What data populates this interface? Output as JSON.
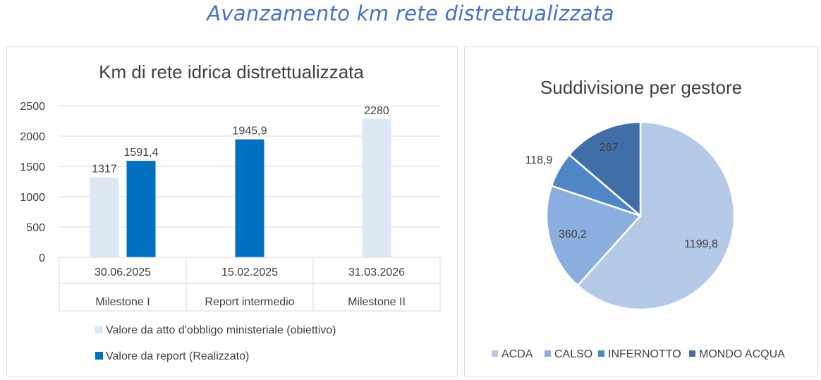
{
  "page": {
    "title": "Avanzamento km rete distrettualizzata"
  },
  "colors": {
    "title_blue": "#4472c4",
    "obiettivo": "#dde8f5",
    "realizzato": "#0070c0",
    "pie": [
      "#b4c9e6",
      "#8aaedd",
      "#4f86c6",
      "#3f6fa6"
    ]
  },
  "chart_data": [
    {
      "type": "bar",
      "title": "Km di rete idrica distrettualizzata",
      "categories": [
        {
          "date": "30.06.2025",
          "label": "Milestone I"
        },
        {
          "date": "15.02.2025",
          "label": "Report intermedio"
        },
        {
          "date": "31.03.2026",
          "label": "Milestone II"
        }
      ],
      "series": [
        {
          "name": "Valore da atto d'obbligo ministeriale (obiettivo)",
          "values": [
            1317,
            null,
            2280
          ],
          "labels": [
            "1317",
            "",
            "2280"
          ]
        },
        {
          "name": "Valore da report (Realizzato)",
          "values": [
            1591.4,
            1945.9,
            null
          ],
          "labels": [
            "1591,4",
            "1945,9",
            ""
          ]
        }
      ],
      "ylim": [
        0,
        2500
      ],
      "yticks": [
        "0",
        "500",
        "1000",
        "1500",
        "2000",
        "2500"
      ],
      "grid": true,
      "legend": "bottom"
    },
    {
      "type": "pie",
      "title": "Suddivisione per gestore",
      "slices": [
        {
          "name": "ACDA",
          "value": 1199.8,
          "label": "1199,8"
        },
        {
          "name": "CALSO",
          "value": 360.2,
          "label": "360,2"
        },
        {
          "name": "INFERNOTTO",
          "value": 118.9,
          "label": "118,9"
        },
        {
          "name": "MONDO  ACQUA",
          "value": 267,
          "label": "267"
        }
      ],
      "legend": "bottom"
    }
  ]
}
